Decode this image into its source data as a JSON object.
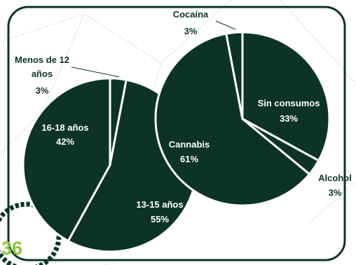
{
  "page_number": "36",
  "chart_data": [
    {
      "type": "pie",
      "categories": [
        "Menos de 12 años",
        "13-15 años",
        "16-18 años"
      ],
      "values": [
        3,
        55,
        42
      ],
      "value_labels": [
        "3%",
        "55%",
        "42%"
      ],
      "color": "#0d3328"
    },
    {
      "type": "pie",
      "categories": [
        "Sin consumos",
        "Alcohol",
        "Cannabis",
        "Cocaína"
      ],
      "values": [
        33,
        3,
        61,
        3
      ],
      "value_labels": [
        "33%",
        "3%",
        "61%",
        "3%"
      ],
      "color": "#0d3328"
    }
  ]
}
